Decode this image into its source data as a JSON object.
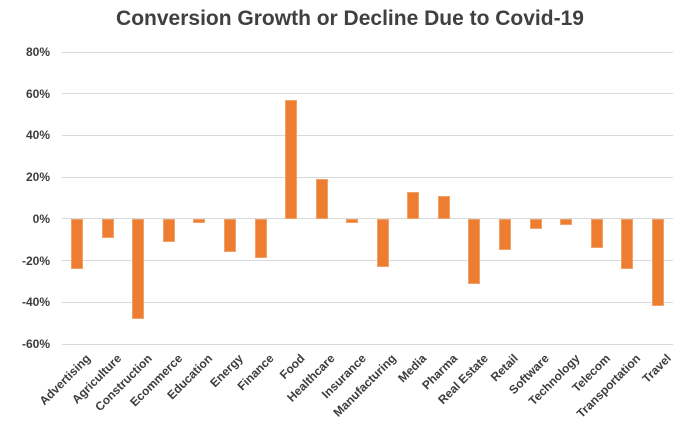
{
  "chart_data": {
    "type": "bar",
    "title": "Conversion Growth or Decline Due to Covid-19",
    "categories": [
      "Advertising",
      "Agriculture",
      "Construction",
      "Ecommerce",
      "Education",
      "Energy",
      "Finance",
      "Food",
      "Healthcare",
      "Insurance",
      "Manufacturing",
      "Media",
      "Pharma",
      "Real Estate",
      "Retail",
      "Software",
      "Technology",
      "Telecom",
      "Transportation",
      "Travel"
    ],
    "values": [
      -24,
      -9,
      -48,
      -11,
      -2,
      -16,
      -19,
      57,
      19,
      -2,
      -23,
      13,
      11,
      -31,
      -15,
      -5,
      -3,
      -14,
      -24,
      -42
    ],
    "unit": "%",
    "xlabel": "",
    "ylabel": "",
    "ylim": [
      -60,
      80
    ],
    "ytick_step": 20,
    "ytick_labels": [
      "80%",
      "60%",
      "40%",
      "20%",
      "0%",
      "-20%",
      "-40%",
      "-60%"
    ],
    "grid": true,
    "legend": false,
    "colors": {
      "bar_fill": "#ED7D31",
      "bar_border": "#F2A269",
      "gridline": "#D9D9D9",
      "title_text": "#404040",
      "tick_text": "#3D3D3D",
      "background": "#FFFFFF"
    }
  }
}
